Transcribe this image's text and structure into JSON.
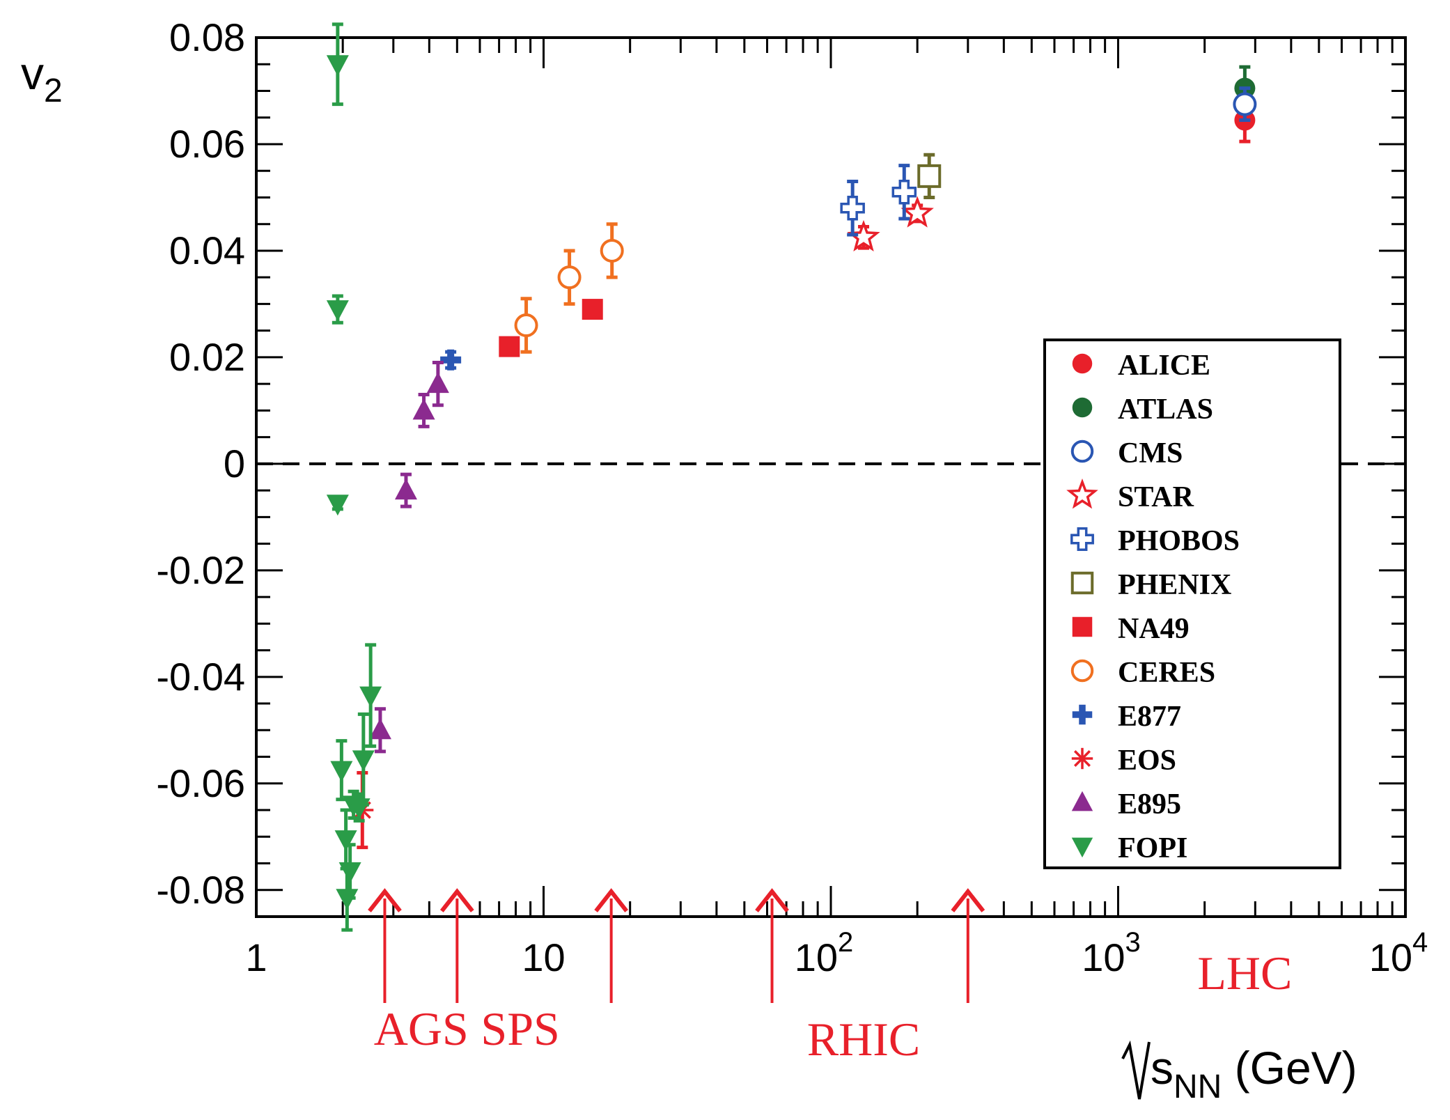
{
  "chart_data": {
    "type": "scatter",
    "title": "",
    "ylabel": "v2",
    "ylabel_main": "v",
    "ylabel_sub": "2",
    "xlabel": "√sNN (GeV)",
    "xlabel_s": "s",
    "xlabel_sub": "NN",
    "xlabel_unit": " (GeV)",
    "xscale": "log",
    "xlim": [
      1,
      10000
    ],
    "ylim": [
      -0.085,
      0.08
    ],
    "x_tick_labels": [
      {
        "value": 1,
        "base": "1",
        "exp": ""
      },
      {
        "value": 10,
        "base": "10",
        "exp": ""
      },
      {
        "value": 100,
        "base": "10",
        "exp": "2"
      },
      {
        "value": 1000,
        "base": "10",
        "exp": "3"
      },
      {
        "value": 10000,
        "base": "10",
        "exp": "4"
      }
    ],
    "y_ticks": [
      -0.08,
      -0.06,
      -0.04,
      -0.02,
      0,
      0.02,
      0.04,
      0.06,
      0.08
    ],
    "y_tick_labels": [
      "-0.08",
      "-0.06",
      "-0.04",
      "-0.02",
      "0",
      "0.02",
      "0.04",
      "0.06",
      "0.08"
    ],
    "zero_line": "dashed",
    "legend_position": "right",
    "series": [
      {
        "name": "ALICE",
        "marker": "circle-filled",
        "color": "#e8202a",
        "points": [
          {
            "x": 2760,
            "y": 0.0645,
            "err": 0.004
          }
        ]
      },
      {
        "name": "ATLAS",
        "marker": "circle-filled",
        "color": "#1e6b34",
        "points": [
          {
            "x": 2760,
            "y": 0.0705,
            "err": 0.004
          }
        ]
      },
      {
        "name": "CMS",
        "marker": "circle-open",
        "color": "#2a56b3",
        "points": [
          {
            "x": 2760,
            "y": 0.0675,
            "err": 0.003
          }
        ]
      },
      {
        "name": "STAR",
        "marker": "star-open",
        "color": "#e8202a",
        "points": [
          {
            "x": 130,
            "y": 0.0425,
            "err": 0.002
          },
          {
            "x": 200,
            "y": 0.047,
            "err": 0.0015
          }
        ]
      },
      {
        "name": "PHOBOS",
        "marker": "cross-open",
        "color": "#2a56b3",
        "points": [
          {
            "x": 119,
            "y": 0.048,
            "err": 0.005
          },
          {
            "x": 180,
            "y": 0.051,
            "err": 0.005
          }
        ]
      },
      {
        "name": "PHENIX",
        "marker": "square-open",
        "color": "#6b6b2a",
        "points": [
          {
            "x": 220,
            "y": 0.054,
            "err": 0.004
          }
        ]
      },
      {
        "name": "NA49",
        "marker": "square-filled",
        "color": "#e8202a",
        "points": [
          {
            "x": 7.6,
            "y": 0.022,
            "err": 0.001
          },
          {
            "x": 14.8,
            "y": 0.029,
            "err": 0.001
          }
        ]
      },
      {
        "name": "CERES",
        "marker": "circle-open",
        "color": "#f07020",
        "points": [
          {
            "x": 8.7,
            "y": 0.026,
            "err": 0.005
          },
          {
            "x": 12.3,
            "y": 0.035,
            "err": 0.005
          },
          {
            "x": 17.3,
            "y": 0.04,
            "err": 0.005
          }
        ]
      },
      {
        "name": "E877",
        "marker": "cross-filled",
        "color": "#2a56b3",
        "points": [
          {
            "x": 4.75,
            "y": 0.0195,
            "err": 0.0015
          }
        ]
      },
      {
        "name": "EOS",
        "marker": "asterisk",
        "color": "#e8202a",
        "points": [
          {
            "x": 2.34,
            "y": -0.065,
            "err": 0.007
          }
        ]
      },
      {
        "name": "E895",
        "marker": "triangle-up",
        "color": "#8b2a8f",
        "points": [
          {
            "x": 3.32,
            "y": -0.005,
            "err": 0.003
          },
          {
            "x": 3.83,
            "y": 0.01,
            "err": 0.003
          },
          {
            "x": 4.29,
            "y": 0.015,
            "err": 0.004
          },
          {
            "x": 2.7,
            "y": -0.05,
            "err": 0.004
          }
        ]
      },
      {
        "name": "FOPI",
        "marker": "triangle-down",
        "color": "#2a9c48",
        "points": [
          {
            "x": 1.92,
            "y": 0.075,
            "err": 0.0075
          },
          {
            "x": 1.92,
            "y": 0.029,
            "err": 0.0025
          },
          {
            "x": 1.92,
            "y": -0.0075,
            "err": 0.001
          },
          {
            "x": 1.98,
            "y": -0.0575,
            "err": 0.0055
          },
          {
            "x": 2.05,
            "y": -0.0705,
            "err": 0.0055
          },
          {
            "x": 2.12,
            "y": -0.0765,
            "err": 0.005
          },
          {
            "x": 2.18,
            "y": -0.064,
            "err": 0.0025
          },
          {
            "x": 2.28,
            "y": -0.0645,
            "err": 0.0025
          },
          {
            "x": 2.36,
            "y": -0.0555,
            "err": 0.0085
          },
          {
            "x": 2.5,
            "y": -0.0435,
            "err": 0.0095
          },
          {
            "x": 2.07,
            "y": -0.0815,
            "err": 0.006
          }
        ]
      }
    ],
    "annotations": {
      "arrows_x": [
        2.8,
        5.0,
        17.2,
        62.4,
        300
      ],
      "labels": [
        {
          "text": "AGS",
          "x": 3.75
        },
        {
          "text": "SPS",
          "x": 8.3
        },
        {
          "text": "RHIC",
          "x": 130
        },
        {
          "text": "LHC",
          "x": 2760
        }
      ]
    }
  }
}
